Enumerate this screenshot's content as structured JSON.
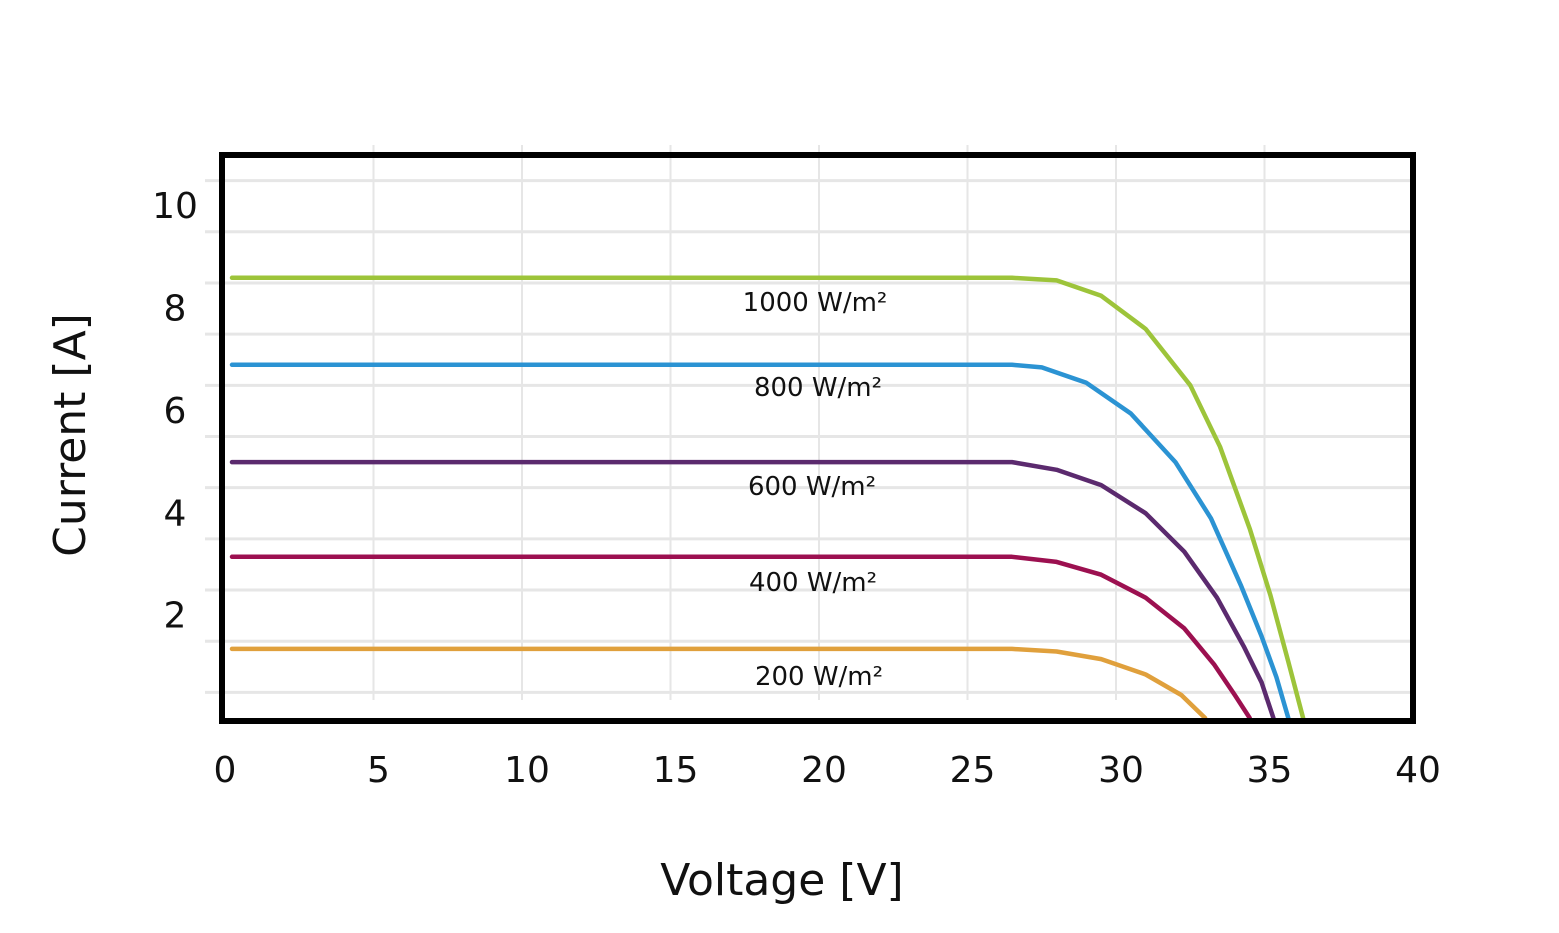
{
  "chart_data": {
    "type": "line",
    "title": "",
    "xlabel": "Voltage [V]",
    "ylabel": "Current [A]",
    "xlim": [
      0,
      40
    ],
    "ylim": [
      0,
      11
    ],
    "x_ticks": [
      0,
      5,
      10,
      15,
      20,
      25,
      30,
      35,
      40
    ],
    "y_ticks": [
      2,
      4,
      6,
      8,
      10
    ],
    "grid": true,
    "legend": "inline labels",
    "series": [
      {
        "name": "1000 W/m²",
        "color": "#9dc43a",
        "x": [
          0,
          26.5,
          28.0,
          29.5,
          31.0,
          32.5,
          33.5,
          34.5,
          35.2,
          35.8,
          36.3
        ],
        "y": [
          8.6,
          8.6,
          8.55,
          8.25,
          7.6,
          6.5,
          5.3,
          3.7,
          2.4,
          1.1,
          0
        ]
      },
      {
        "name": "800 W/m²",
        "color": "#2b93d3",
        "x": [
          0,
          26.5,
          27.5,
          29.0,
          30.5,
          32.0,
          33.2,
          34.2,
          34.9,
          35.4,
          35.8
        ],
        "y": [
          6.9,
          6.9,
          6.85,
          6.55,
          5.95,
          5.0,
          3.9,
          2.6,
          1.6,
          0.8,
          0
        ]
      },
      {
        "name": "600 W/m²",
        "color": "#5b2a6e",
        "x": [
          0,
          26.5,
          28.0,
          29.5,
          31.0,
          32.3,
          33.4,
          34.3,
          34.9,
          35.3
        ],
        "y": [
          5.0,
          5.0,
          4.85,
          4.55,
          4.0,
          3.25,
          2.35,
          1.4,
          0.7,
          0
        ]
      },
      {
        "name": "400 W/m²",
        "color": "#9c1050",
        "x": [
          0,
          26.5,
          28.0,
          29.5,
          31.0,
          32.3,
          33.3,
          34.0,
          34.5
        ],
        "y": [
          3.15,
          3.15,
          3.05,
          2.8,
          2.35,
          1.75,
          1.05,
          0.45,
          0
        ]
      },
      {
        "name": "200 W/m²",
        "color": "#e0a03c",
        "x": [
          0,
          26.5,
          28.0,
          29.5,
          31.0,
          32.2,
          33.0
        ],
        "y": [
          1.35,
          1.35,
          1.3,
          1.15,
          0.85,
          0.45,
          0
        ]
      }
    ]
  }
}
